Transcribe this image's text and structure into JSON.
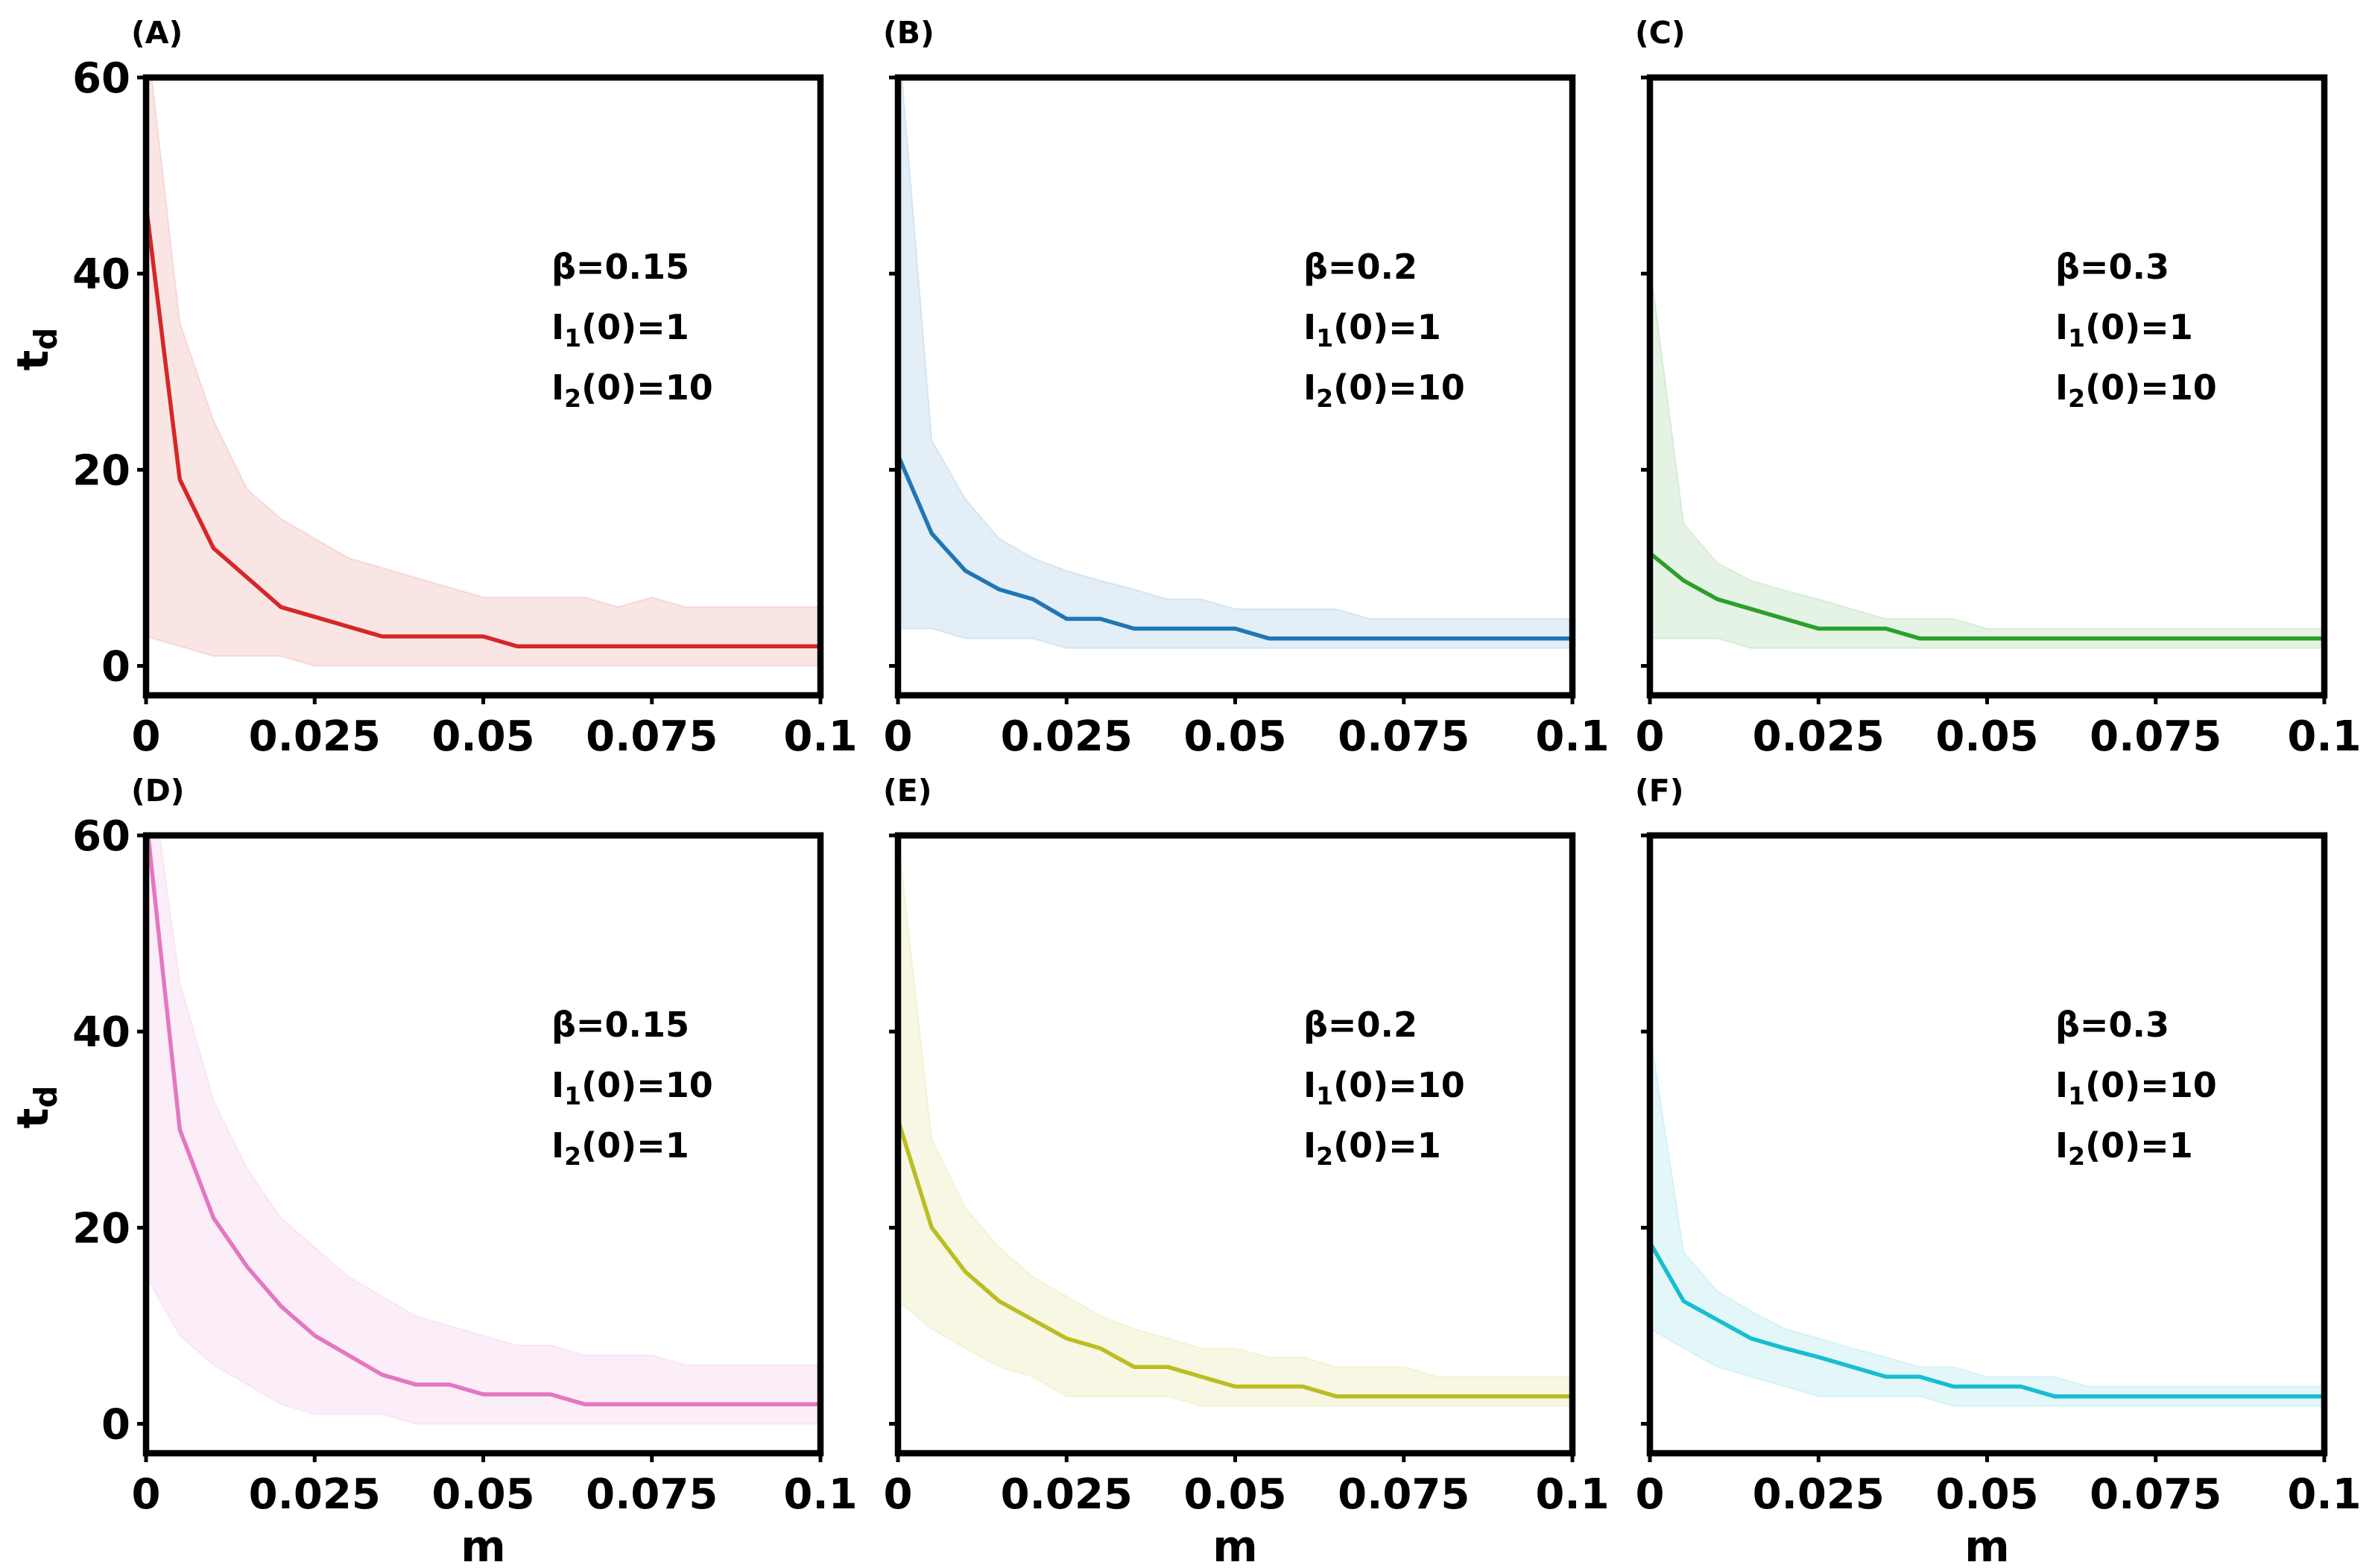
{
  "chart_data": [
    {
      "panel_label": "(A)",
      "type": "line",
      "title": "",
      "xlabel": "",
      "ylabel": "t",
      "ylabel_sub": "d",
      "xlim": [
        0,
        0.1
      ],
      "ylim": [
        -3,
        60
      ],
      "xticks": [
        0,
        0.025,
        0.05,
        0.075,
        0.1
      ],
      "xtick_labels": [
        "0",
        "0.025",
        "0.05",
        "0.075",
        "0.1"
      ],
      "yticks": [
        0,
        20,
        40,
        60
      ],
      "ytick_labels": [
        "0",
        "20",
        "40",
        "60"
      ],
      "annotations": [
        {
          "main": "β=0.15"
        },
        {
          "main": "I",
          "sub": "1",
          "rest": "(0)=1"
        },
        {
          "main": "I",
          "sub": "2",
          "rest": "(0)=10"
        }
      ],
      "color": "#d62728",
      "series": [
        {
          "name": "t_d",
          "x": [
            0,
            0.005,
            0.01,
            0.015,
            0.02,
            0.025,
            0.03,
            0.035,
            0.04,
            0.045,
            0.05,
            0.055,
            0.06,
            0.065,
            0.07,
            0.075,
            0.08,
            0.085,
            0.09,
            0.095,
            0.1
          ],
          "mean": [
            47,
            19,
            12,
            9,
            6,
            5,
            4,
            3,
            3,
            3,
            3,
            2,
            2,
            2,
            2,
            2,
            2,
            2,
            2,
            2,
            2
          ],
          "upper": [
            65,
            35,
            25,
            18,
            15,
            13,
            11,
            10,
            9,
            8,
            7,
            7,
            7,
            7,
            6,
            7,
            6,
            6,
            6,
            6,
            6
          ],
          "lower": [
            3,
            2,
            1,
            1,
            1,
            0,
            0,
            0,
            0,
            0,
            0,
            0,
            0,
            0,
            0,
            0,
            0,
            0,
            0,
            0,
            0
          ]
        }
      ]
    },
    {
      "panel_label": "(B)",
      "type": "line",
      "title": "",
      "xlabel": "",
      "ylabel": "",
      "xlim": [
        0,
        0.1
      ],
      "ylim": [
        -3,
        60
      ],
      "xticks": [
        0,
        0.025,
        0.05,
        0.075,
        0.1
      ],
      "xtick_labels": [
        "0",
        "0.025",
        "0.05",
        "0.075",
        "0.1"
      ],
      "yticks": [
        0,
        20,
        40,
        60
      ],
      "ytick_labels": [],
      "annotations": [
        {
          "main": "β=0.2"
        },
        {
          "main": "I",
          "sub": "1",
          "rest": "(0)=1"
        },
        {
          "main": "I",
          "sub": "2",
          "rest": "(0)=10"
        }
      ],
      "color": "#1f77b4",
      "series": [
        {
          "name": "t_d",
          "x": [
            0,
            0.005,
            0.01,
            0.015,
            0.02,
            0.025,
            0.03,
            0.035,
            0.04,
            0.045,
            0.05,
            0.055,
            0.06,
            0.065,
            0.07,
            0.075,
            0.08,
            0.085,
            0.09,
            0.095,
            0.1
          ],
          "mean": [
            21.5,
            13.5,
            9.7,
            7.8,
            6.8,
            4.8,
            4.8,
            3.8,
            3.8,
            3.8,
            3.8,
            2.8,
            2.8,
            2.8,
            2.8,
            2.8,
            2.8,
            2.8,
            2.8,
            2.8,
            2.8
          ],
          "upper": [
            65,
            23,
            17,
            13,
            11,
            9.7,
            8.7,
            7.8,
            6.8,
            6.8,
            5.8,
            5.8,
            5.8,
            5.8,
            4.8,
            4.8,
            4.8,
            4.8,
            4.8,
            4.8,
            4.8
          ],
          "lower": [
            3.8,
            3.8,
            2.8,
            2.8,
            2.8,
            1.8,
            1.8,
            1.8,
            1.8,
            1.8,
            1.8,
            1.8,
            1.8,
            1.8,
            1.8,
            1.8,
            1.8,
            1.8,
            1.8,
            1.8,
            1.8
          ]
        }
      ]
    },
    {
      "panel_label": "(C)",
      "type": "line",
      "title": "",
      "xlabel": "",
      "ylabel": "",
      "xlim": [
        0,
        0.1
      ],
      "ylim": [
        -3,
        60
      ],
      "xticks": [
        0,
        0.025,
        0.05,
        0.075,
        0.1
      ],
      "xtick_labels": [
        "0",
        "0.025",
        "0.05",
        "0.075",
        "0.1"
      ],
      "yticks": [
        0,
        20,
        40,
        60
      ],
      "ytick_labels": [],
      "annotations": [
        {
          "main": "β=0.3"
        },
        {
          "main": "I",
          "sub": "1",
          "rest": "(0)=1"
        },
        {
          "main": "I",
          "sub": "2",
          "rest": "(0)=10"
        }
      ],
      "color": "#2ca02c",
      "series": [
        {
          "name": "t_d",
          "x": [
            0,
            0.005,
            0.01,
            0.015,
            0.02,
            0.025,
            0.03,
            0.035,
            0.04,
            0.045,
            0.05,
            0.055,
            0.06,
            0.065,
            0.07,
            0.075,
            0.08,
            0.085,
            0.09,
            0.095,
            0.1
          ],
          "mean": [
            11.5,
            8.7,
            6.8,
            5.8,
            4.8,
            3.8,
            3.8,
            3.8,
            2.8,
            2.8,
            2.8,
            2.8,
            2.8,
            2.8,
            2.8,
            2.8,
            2.8,
            2.8,
            2.8,
            2.8,
            2.8
          ],
          "upper": [
            41,
            14.5,
            10.5,
            8.7,
            7.7,
            6.8,
            5.8,
            4.8,
            4.8,
            4.8,
            3.8,
            3.8,
            3.8,
            3.8,
            3.8,
            3.8,
            3.8,
            3.8,
            3.8,
            3.8,
            3.8
          ],
          "lower": [
            2.8,
            2.8,
            2.8,
            1.8,
            1.8,
            1.8,
            1.8,
            1.8,
            1.8,
            1.8,
            1.8,
            1.8,
            1.8,
            1.8,
            1.8,
            1.8,
            1.8,
            1.8,
            1.8,
            1.8,
            1.8
          ]
        }
      ]
    },
    {
      "panel_label": "(D)",
      "type": "line",
      "title": "",
      "xlabel": "m",
      "ylabel": "t",
      "ylabel_sub": "d",
      "xlim": [
        0,
        0.1
      ],
      "ylim": [
        -3,
        60
      ],
      "xticks": [
        0,
        0.025,
        0.05,
        0.075,
        0.1
      ],
      "xtick_labels": [
        "0",
        "0.025",
        "0.05",
        "0.075",
        "0.1"
      ],
      "yticks": [
        0,
        20,
        40,
        60
      ],
      "ytick_labels": [
        "0",
        "20",
        "40",
        "60"
      ],
      "annotations": [
        {
          "main": "β=0.15"
        },
        {
          "main": "I",
          "sub": "1",
          "rest": "(0)=10"
        },
        {
          "main": "I",
          "sub": "2",
          "rest": "(0)=1"
        }
      ],
      "color": "#e377c2",
      "series": [
        {
          "name": "t_d",
          "x": [
            0,
            0.005,
            0.01,
            0.015,
            0.02,
            0.025,
            0.03,
            0.035,
            0.04,
            0.045,
            0.05,
            0.055,
            0.06,
            0.065,
            0.07,
            0.075,
            0.08,
            0.085,
            0.09,
            0.095,
            0.1
          ],
          "mean": [
            62,
            30,
            21,
            16,
            12,
            9,
            7,
            5,
            4,
            4,
            3,
            3,
            3,
            2,
            2,
            2,
            2,
            2,
            2,
            2,
            2
          ],
          "upper": [
            70,
            45,
            33,
            26,
            21,
            18,
            15,
            13,
            11,
            10,
            9,
            8,
            8,
            7,
            7,
            7,
            6,
            6,
            6,
            6,
            6
          ],
          "lower": [
            15,
            9,
            6,
            4,
            2,
            1,
            1,
            1,
            0,
            0,
            0,
            0,
            0,
            0,
            0,
            0,
            0,
            0,
            0,
            0,
            0
          ]
        }
      ]
    },
    {
      "panel_label": "(E)",
      "type": "line",
      "title": "",
      "xlabel": "m",
      "ylabel": "",
      "xlim": [
        0,
        0.1
      ],
      "ylim": [
        -3,
        60
      ],
      "xticks": [
        0,
        0.025,
        0.05,
        0.075,
        0.1
      ],
      "xtick_labels": [
        "0",
        "0.025",
        "0.05",
        "0.075",
        "0.1"
      ],
      "yticks": [
        0,
        20,
        40,
        60
      ],
      "ytick_labels": [],
      "annotations": [
        {
          "main": "β=0.2"
        },
        {
          "main": "I",
          "sub": "1",
          "rest": "(0)=10"
        },
        {
          "main": "I",
          "sub": "2",
          "rest": "(0)=1"
        }
      ],
      "color": "#bcbd22",
      "series": [
        {
          "name": "t_d",
          "x": [
            0,
            0.005,
            0.01,
            0.015,
            0.02,
            0.025,
            0.03,
            0.035,
            0.04,
            0.045,
            0.05,
            0.055,
            0.06,
            0.065,
            0.07,
            0.075,
            0.08,
            0.085,
            0.09,
            0.095,
            0.1
          ],
          "mean": [
            31,
            20,
            15.5,
            12.5,
            10.6,
            8.7,
            7.7,
            5.8,
            5.8,
            4.8,
            3.8,
            3.8,
            3.8,
            2.8,
            2.8,
            2.8,
            2.8,
            2.8,
            2.8,
            2.8,
            2.8
          ],
          "upper": [
            60,
            29,
            22,
            18,
            15,
            13,
            11,
            9.7,
            8.7,
            7.7,
            7.7,
            6.8,
            6.8,
            5.8,
            5.8,
            5.8,
            4.8,
            4.8,
            4.8,
            4.8,
            4.8
          ],
          "lower": [
            12.5,
            9.7,
            7.7,
            5.8,
            4.8,
            2.8,
            2.8,
            2.8,
            2.8,
            1.8,
            1.8,
            1.8,
            1.8,
            1.8,
            1.8,
            1.8,
            1.8,
            1.8,
            1.8,
            1.8,
            1.8
          ]
        }
      ]
    },
    {
      "panel_label": "(F)",
      "type": "line",
      "title": "",
      "xlabel": "m",
      "ylabel": "",
      "xlim": [
        0,
        0.1
      ],
      "ylim": [
        -3,
        60
      ],
      "xticks": [
        0,
        0.025,
        0.05,
        0.075,
        0.1
      ],
      "xtick_labels": [
        "0",
        "0.025",
        "0.05",
        "0.075",
        "0.1"
      ],
      "yticks": [
        0,
        20,
        40,
        60
      ],
      "ytick_labels": [],
      "annotations": [
        {
          "main": "β=0.3"
        },
        {
          "main": "I",
          "sub": "1",
          "rest": "(0)=10"
        },
        {
          "main": "I",
          "sub": "2",
          "rest": "(0)=1"
        }
      ],
      "color": "#17becf",
      "series": [
        {
          "name": "t_d",
          "x": [
            0,
            0.005,
            0.01,
            0.015,
            0.02,
            0.025,
            0.03,
            0.035,
            0.04,
            0.045,
            0.05,
            0.055,
            0.06,
            0.065,
            0.07,
            0.075,
            0.08,
            0.085,
            0.09,
            0.095,
            0.1
          ],
          "mean": [
            18.5,
            12.5,
            10.6,
            8.7,
            7.7,
            6.8,
            5.8,
            4.8,
            4.8,
            3.8,
            3.8,
            3.8,
            2.8,
            2.8,
            2.8,
            2.8,
            2.8,
            2.8,
            2.8,
            2.8,
            2.8
          ],
          "upper": [
            40,
            17.5,
            13.5,
            11.5,
            9.7,
            8.7,
            7.7,
            6.8,
            5.8,
            5.8,
            4.8,
            4.8,
            4.8,
            3.8,
            3.8,
            3.8,
            3.8,
            3.8,
            3.8,
            3.8,
            3.8
          ],
          "lower": [
            9.7,
            7.7,
            5.8,
            4.8,
            3.8,
            2.8,
            2.8,
            2.8,
            2.8,
            1.8,
            1.8,
            1.8,
            1.8,
            1.8,
            1.8,
            1.8,
            1.8,
            1.8,
            1.8,
            1.8,
            1.8
          ]
        }
      ]
    }
  ]
}
